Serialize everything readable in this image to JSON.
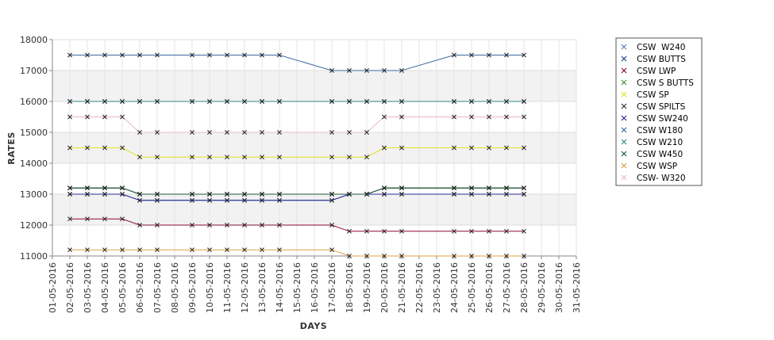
{
  "chart_data": {
    "type": "line",
    "title": "",
    "xlabel": "DAYS",
    "ylabel": "RATES",
    "ylim": [
      11000,
      18000
    ],
    "yticks": [
      11000,
      12000,
      13000,
      14000,
      15000,
      16000,
      17000,
      18000
    ],
    "grid": true,
    "legend_position": "right",
    "categories": [
      "01-05-2016",
      "02-05-2016",
      "03-05-2016",
      "04-05-2016",
      "05-05-2016",
      "06-05-2016",
      "07-05-2016",
      "08-05-2016",
      "09-05-2016",
      "10-05-2016",
      "11-05-2016",
      "12-05-2016",
      "13-05-2016",
      "14-05-2016",
      "15-05-2016",
      "16-05-2016",
      "17-05-2016",
      "18-05-2016",
      "19-05-2016",
      "20-05-2016",
      "21-05-2016",
      "22-05-2016",
      "23-05-2016",
      "24-05-2016",
      "25-05-2016",
      "26-05-2016",
      "27-05-2016",
      "28-05-2016",
      "29-05-2016",
      "30-05-2016",
      "31-05-2016"
    ],
    "series": [
      {
        "name": "CSW  W240",
        "color": "#5a7fb5",
        "values": [
          null,
          16000,
          16000,
          16000,
          16000,
          16000,
          16000,
          null,
          16000,
          16000,
          16000,
          16000,
          16000,
          16000,
          null,
          null,
          16000,
          16000,
          16000,
          16000,
          16000,
          null,
          null,
          16000,
          16000,
          16000,
          16000,
          16000,
          null,
          null,
          null
        ]
      },
      {
        "name": "CSW BUTTS",
        "color": "#1f3f8f",
        "values": [
          null,
          13000,
          13000,
          13000,
          13000,
          12800,
          12800,
          null,
          12800,
          12800,
          12800,
          12800,
          12800,
          12800,
          null,
          null,
          12800,
          13000,
          13000,
          13000,
          13000,
          null,
          null,
          13000,
          13000,
          13000,
          13000,
          13000,
          null,
          null,
          null
        ]
      },
      {
        "name": "CSW LWP",
        "color": "#8b0a2f",
        "values": [
          null,
          12200,
          12200,
          12200,
          12200,
          12000,
          12000,
          null,
          12000,
          12000,
          12000,
          12000,
          12000,
          12000,
          null,
          null,
          12000,
          11800,
          11800,
          11800,
          11800,
          null,
          null,
          11800,
          11800,
          11800,
          11800,
          11800,
          null,
          null,
          null
        ]
      },
      {
        "name": "CSW S BUTTS",
        "color": "#4a8a3a",
        "values": [
          null,
          13200,
          13200,
          13200,
          13200,
          13000,
          13000,
          null,
          13000,
          13000,
          13000,
          13000,
          13000,
          13000,
          null,
          null,
          13000,
          13000,
          13000,
          13200,
          13200,
          null,
          null,
          13200,
          13200,
          13200,
          13200,
          13200,
          null,
          null,
          null
        ]
      },
      {
        "name": "CSW SP",
        "color": "#e0e020",
        "values": [
          null,
          14500,
          14500,
          14500,
          14500,
          14200,
          14200,
          null,
          14200,
          14200,
          14200,
          14200,
          14200,
          14200,
          null,
          null,
          14200,
          14200,
          14200,
          14500,
          14500,
          null,
          null,
          14500,
          14500,
          14500,
          14500,
          14500,
          null,
          null,
          null
        ]
      },
      {
        "name": "CSW SPILTS",
        "color": "#333333",
        "values": [
          null,
          13200,
          13200,
          13200,
          13200,
          13000,
          13000,
          null,
          13000,
          13000,
          13000,
          13000,
          13000,
          13000,
          null,
          null,
          13000,
          13000,
          13000,
          13200,
          13200,
          null,
          null,
          13200,
          13200,
          13200,
          13200,
          13200,
          null,
          null,
          null
        ]
      },
      {
        "name": "CSW SW240",
        "color": "#2a2a9a",
        "values": [
          null,
          13000,
          13000,
          13000,
          13000,
          12800,
          12800,
          null,
          12800,
          12800,
          12800,
          12800,
          12800,
          12800,
          null,
          null,
          12800,
          13000,
          13000,
          13000,
          13000,
          null,
          null,
          13000,
          13000,
          13000,
          13000,
          13000,
          null,
          null,
          null
        ]
      },
      {
        "name": "CSW W180",
        "color": "#3a6aa0",
        "values": [
          null,
          17500,
          17500,
          17500,
          17500,
          17500,
          17500,
          null,
          17500,
          17500,
          17500,
          17500,
          17500,
          17500,
          null,
          null,
          17000,
          17000,
          17000,
          17000,
          17000,
          null,
          null,
          17500,
          17500,
          17500,
          17500,
          17500,
          null,
          null,
          null
        ]
      },
      {
        "name": "CSW W210",
        "color": "#2a8a8a",
        "values": [
          null,
          16000,
          16000,
          16000,
          16000,
          16000,
          16000,
          null,
          16000,
          16000,
          16000,
          16000,
          16000,
          16000,
          null,
          null,
          16000,
          16000,
          16000,
          16000,
          16000,
          null,
          null,
          16000,
          16000,
          16000,
          16000,
          16000,
          null,
          null,
          null
        ]
      },
      {
        "name": "CSW W450",
        "color": "#1f5a3a",
        "values": [
          null,
          13200,
          13200,
          13200,
          13200,
          13000,
          13000,
          null,
          13000,
          13000,
          13000,
          13000,
          13000,
          13000,
          null,
          null,
          13000,
          13000,
          13000,
          13200,
          13200,
          null,
          null,
          13200,
          13200,
          13200,
          13200,
          13200,
          null,
          null,
          null
        ]
      },
      {
        "name": "CSW WSP",
        "color": "#e0a040",
        "values": [
          null,
          11200,
          11200,
          11200,
          11200,
          11200,
          11200,
          null,
          11200,
          11200,
          11200,
          11200,
          11200,
          11200,
          null,
          null,
          11200,
          11000,
          11000,
          11000,
          11000,
          null,
          null,
          11000,
          11000,
          11000,
          11000,
          11000,
          null,
          null,
          null
        ]
      },
      {
        "name": "CSW- W320",
        "color": "#e8b8c0",
        "values": [
          null,
          15500,
          15500,
          15500,
          15500,
          15000,
          15000,
          null,
          15000,
          15000,
          15000,
          15000,
          15000,
          15000,
          null,
          null,
          15000,
          15000,
          15000,
          15500,
          15500,
          null,
          null,
          15500,
          15500,
          15500,
          15500,
          15500,
          null,
          null,
          null
        ]
      }
    ]
  }
}
